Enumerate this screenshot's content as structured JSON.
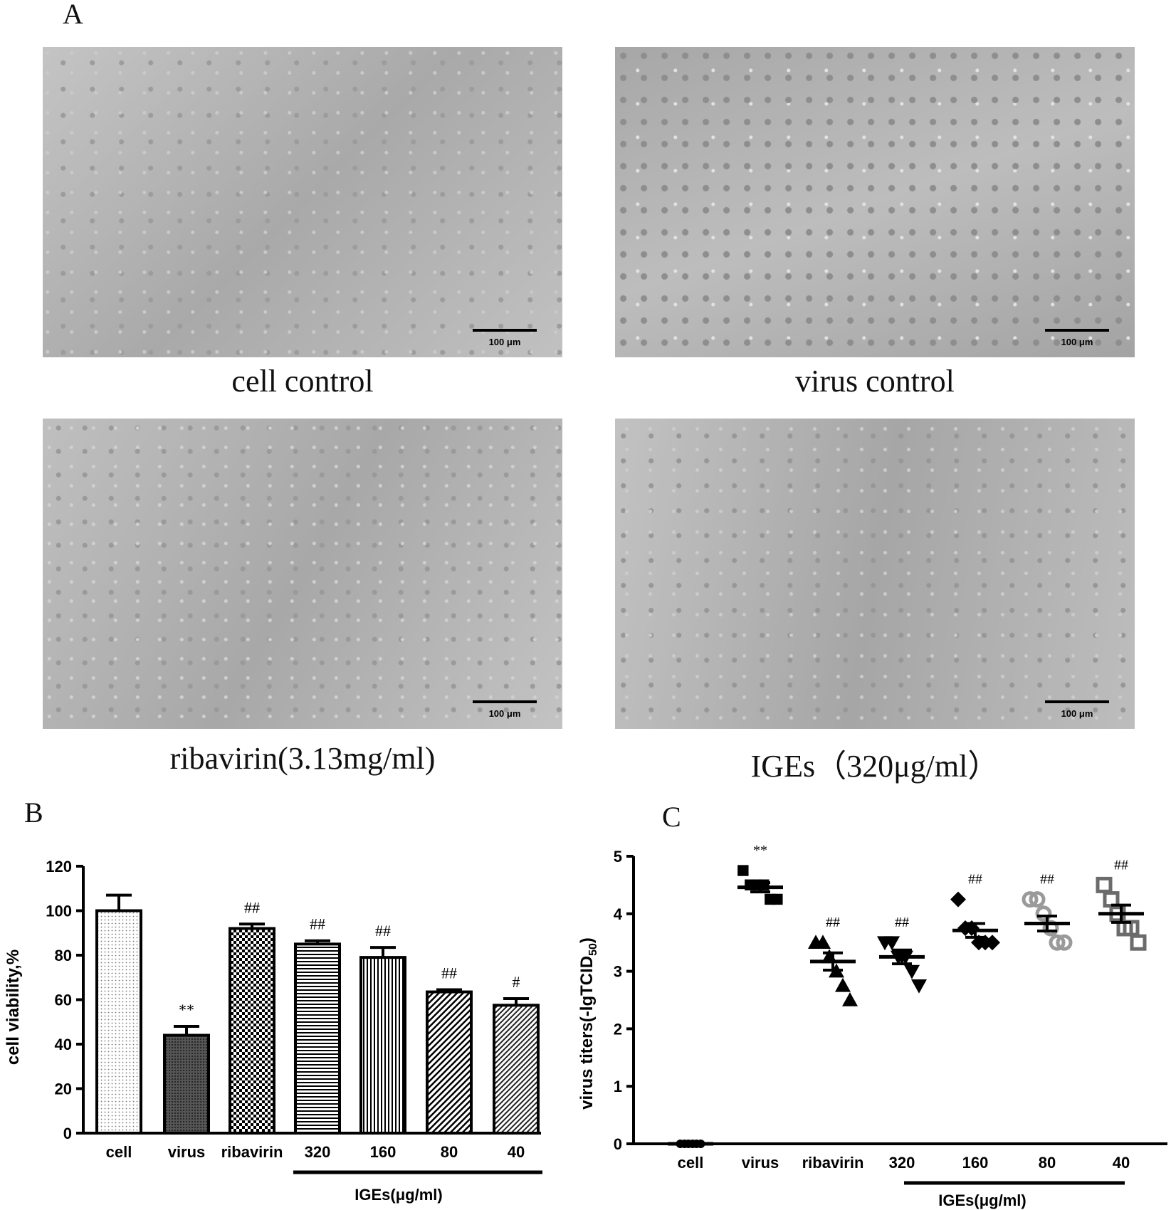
{
  "panel_a": {
    "letter": "A",
    "images": [
      {
        "caption": "cell control",
        "scale_label": "100 μm"
      },
      {
        "caption": "virus control",
        "scale_label": "100 μm"
      },
      {
        "caption": "ribavirin(3.13mg/ml)",
        "scale_label": "100 μm"
      },
      {
        "caption": "IGEs（320μg/ml）",
        "scale_label": "100 μm"
      }
    ]
  },
  "panel_b": {
    "letter": "B"
  },
  "panel_c": {
    "letter": "C"
  },
  "chart_data": [
    {
      "type": "bar",
      "panel": "B",
      "ylabel": "cell viability,%",
      "ylim": [
        0,
        120
      ],
      "yticks": [
        0,
        20,
        40,
        60,
        80,
        100,
        120
      ],
      "categories": [
        "cell",
        "virus",
        "ribavirin",
        "320",
        "160",
        "80",
        "40"
      ],
      "values": [
        100,
        44,
        92,
        85,
        79,
        63.5,
        57.5
      ],
      "errors": [
        7,
        4,
        2,
        1.5,
        4.5,
        1,
        3
      ],
      "significance": [
        "",
        "**",
        "##",
        "##",
        "##",
        "##",
        "#"
      ],
      "group_label": "IGEs(μg/ml)",
      "grid": false
    },
    {
      "type": "scatter",
      "panel": "C",
      "ylabel": "virus titers(-lgTCID",
      "ylabel_sub": "50",
      "ylabel_end": ")",
      "ylim": [
        0,
        5
      ],
      "yticks": [
        0,
        1,
        2,
        3,
        4,
        5
      ],
      "categories": [
        "cell",
        "virus",
        "ribavirin",
        "320",
        "160",
        "80",
        "40"
      ],
      "points": [
        [
          0,
          0,
          0,
          0,
          0,
          0
        ],
        [
          4.75,
          4.5,
          4.5,
          4.5,
          4.25,
          4.25
        ],
        [
          3.5,
          3.5,
          3.25,
          3.0,
          2.75,
          2.5
        ],
        [
          3.5,
          3.5,
          3.25,
          3.25,
          3.0,
          2.75
        ],
        [
          4.25,
          3.75,
          3.75,
          3.5,
          3.5,
          3.5
        ],
        [
          4.25,
          4.25,
          4.0,
          3.75,
          3.5,
          3.5
        ],
        [
          4.5,
          4.25,
          4.0,
          3.75,
          3.75,
          3.5
        ]
      ],
      "means": [
        0,
        4.46,
        3.17,
        3.25,
        3.71,
        3.83,
        4.0
      ],
      "sems": [
        0,
        0.08,
        0.15,
        0.12,
        0.12,
        0.13,
        0.15
      ],
      "significance": [
        "",
        "**",
        "##",
        "##",
        "##",
        "##",
        "##"
      ],
      "markers": [
        "circle",
        "square",
        "triangle",
        "triangle-down",
        "diamond",
        "circle-open",
        "square-open"
      ],
      "colors": [
        "#000000",
        "#000000",
        "#000000",
        "#000000",
        "#000000",
        "#9a9a9a",
        "#6b6b6b"
      ],
      "group_label": "IGEs(μg/ml)",
      "grid": false
    }
  ]
}
